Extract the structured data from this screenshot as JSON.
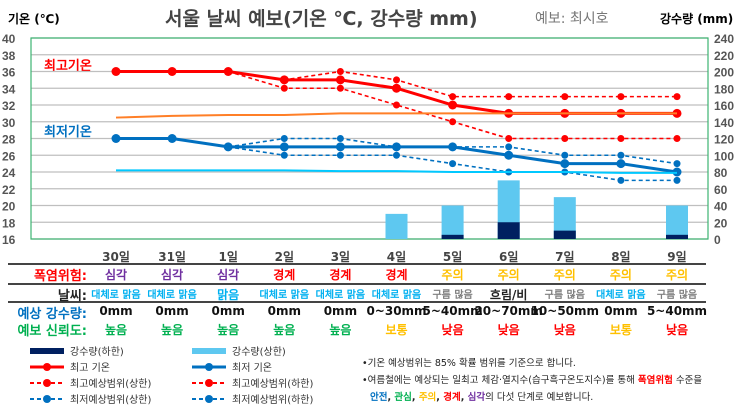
{
  "title": "서울 날씨 예보(기온 ℃, 강수량 mm)",
  "forecaster": "예보: 최시호",
  "chart_data": {
    "type": "line",
    "title": "서울 날씨 예보(기온 ℃, 강수량 mm)",
    "ylabel": "기온 (℃)",
    "y2label": "강수량 (mm)",
    "ylim": [
      16,
      40
    ],
    "y2lim": [
      0,
      240
    ],
    "yticks": [
      40,
      38,
      36,
      34,
      32,
      30,
      28,
      26,
      24,
      22,
      20,
      18,
      16
    ],
    "y2ticks": [
      240,
      220,
      200,
      180,
      160,
      140,
      120,
      100,
      80,
      60,
      40,
      20,
      0
    ],
    "grid": true,
    "categories": [
      "30일",
      "31일",
      "1일",
      "2일",
      "3일",
      "4일",
      "5일",
      "6일",
      "7일",
      "8일",
      "9일"
    ],
    "annotations": {
      "high": "최고기온",
      "low": "최저기온"
    },
    "series": [
      {
        "name": "최고 기온",
        "type": "line",
        "axis": "left",
        "color": "#ff0000",
        "values": [
          36,
          36,
          36,
          35,
          35,
          34,
          32,
          31,
          31,
          31,
          31
        ]
      },
      {
        "name": "최고예상범위(상한)",
        "type": "dashed",
        "axis": "left",
        "color": "#ff0000",
        "values": [
          null,
          null,
          36,
          35,
          36,
          35,
          33,
          33,
          33,
          33,
          33
        ]
      },
      {
        "name": "최고예상범위(하한)",
        "type": "dashed",
        "axis": "left",
        "color": "#ff0000",
        "values": [
          null,
          null,
          36,
          34,
          34,
          32,
          30,
          28,
          28,
          28,
          28
        ]
      },
      {
        "name": "최저 기온",
        "type": "line",
        "axis": "left",
        "color": "#0070c0",
        "values": [
          28,
          28,
          27,
          27,
          27,
          27,
          27,
          26,
          25,
          25,
          24
        ]
      },
      {
        "name": "최저예상범위(상한)",
        "type": "dashed",
        "axis": "left",
        "color": "#0070c0",
        "values": [
          null,
          null,
          27,
          28,
          28,
          27,
          27,
          27,
          26,
          26,
          25
        ]
      },
      {
        "name": "최저예상범위(하한)",
        "type": "dashed",
        "axis": "left",
        "color": "#0070c0",
        "values": [
          null,
          null,
          27,
          26,
          26,
          26,
          25,
          24,
          24,
          23,
          23
        ]
      },
      {
        "name": "평년 최고기온",
        "type": "smooth",
        "axis": "left",
        "color": "#ff7f27",
        "values": [
          30.5,
          30.7,
          30.8,
          30.8,
          31.0,
          31.0,
          31.0,
          31.0,
          31.0,
          31.0,
          31.0
        ]
      },
      {
        "name": "평년 최저기온",
        "type": "smooth",
        "axis": "left",
        "color": "#00c8ff",
        "values": [
          24.2,
          24.2,
          24.2,
          24.2,
          24.1,
          24.1,
          24.0,
          24.0,
          24.0,
          23.9,
          23.9
        ]
      },
      {
        "name": "강수량(상한)",
        "type": "bar",
        "axis": "right",
        "color": "#5ec8f0",
        "values": [
          0,
          0,
          0,
          0,
          0,
          30,
          40,
          70,
          50,
          0,
          40
        ]
      },
      {
        "name": "강수량(하한)",
        "type": "bar",
        "axis": "right",
        "color": "#002060",
        "values": [
          0,
          0,
          0,
          0,
          0,
          0,
          5,
          20,
          10,
          0,
          5
        ]
      }
    ]
  },
  "table": {
    "heat_label": "폭염위험:",
    "heat": [
      {
        "t": "심각",
        "c": "#7030a0"
      },
      {
        "t": "심각",
        "c": "#7030a0"
      },
      {
        "t": "심각",
        "c": "#7030a0"
      },
      {
        "t": "경계",
        "c": "#ff0000"
      },
      {
        "t": "경계",
        "c": "#ff0000"
      },
      {
        "t": "경계",
        "c": "#ff0000"
      },
      {
        "t": "주의",
        "c": "#ffc000"
      },
      {
        "t": "주의",
        "c": "#ffc000"
      },
      {
        "t": "주의",
        "c": "#ffc000"
      },
      {
        "t": "주의",
        "c": "#ffc000"
      },
      {
        "t": "주의",
        "c": "#ffc000"
      }
    ],
    "weather_label": "날씨:",
    "weather": [
      {
        "t": "대체로 맑음",
        "c": "#00b0f0"
      },
      {
        "t": "대체로 맑음",
        "c": "#00b0f0"
      },
      {
        "t": "맑음",
        "c": "#00b0f0"
      },
      {
        "t": "대체로 맑음",
        "c": "#00b0f0"
      },
      {
        "t": "대체로 맑음",
        "c": "#00b0f0"
      },
      {
        "t": "대체로 맑음",
        "c": "#00b0f0"
      },
      {
        "t": "구름 많음",
        "c": "#7f7f7f"
      },
      {
        "t": "흐림/비",
        "c": "#222222"
      },
      {
        "t": "구름 많음",
        "c": "#7f7f7f"
      },
      {
        "t": "대체로 맑음",
        "c": "#00b0f0"
      },
      {
        "t": "구름 많음",
        "c": "#7f7f7f"
      }
    ],
    "rain_label": "예상 강수량:",
    "rain": [
      "0mm",
      "0mm",
      "0mm",
      "0mm",
      "0mm",
      "0~30mm",
      "5~40mm",
      "20~70mm",
      "10~50mm",
      "0mm",
      "5~40mm"
    ],
    "conf_label": "예보 신뢰도:",
    "conf": [
      {
        "t": "높음",
        "c": "#00b050"
      },
      {
        "t": "높음",
        "c": "#00b050"
      },
      {
        "t": "높음",
        "c": "#00b050"
      },
      {
        "t": "높음",
        "c": "#00b050"
      },
      {
        "t": "높음",
        "c": "#00b050"
      },
      {
        "t": "보통",
        "c": "#ffc000"
      },
      {
        "t": "낮음",
        "c": "#ff0000"
      },
      {
        "t": "낮음",
        "c": "#ff0000"
      },
      {
        "t": "낮음",
        "c": "#ff0000"
      },
      {
        "t": "보통",
        "c": "#ffc000"
      },
      {
        "t": "낮음",
        "c": "#ff0000"
      }
    ]
  },
  "legend": [
    "강수량(하한)",
    "강수량(상한)",
    "최고 기온",
    "최저 기온",
    "최고예상범위(상한)",
    "최고예상범위(하한)",
    "최저예상범위(상한)",
    "최저예상범위(하한)",
    "평년 최고기온",
    "평년 최저기온"
  ],
  "notes": {
    "n1": "•기온 예상범위는 85% 확률 범위를 기준으로 합니다.",
    "n2a": "•여름철에는 예상되는 일최고 체감·열지수(습구흑구온도지수)를 통해 ",
    "n2b": "폭염위험",
    "n2c": " 수준을",
    "l_safe": "안전",
    "l_care": "관심",
    "l_watch": "주의",
    "l_warn": "경계",
    "l_severe": "심각",
    "n3": "의 다섯 단계로 예보합니다."
  }
}
